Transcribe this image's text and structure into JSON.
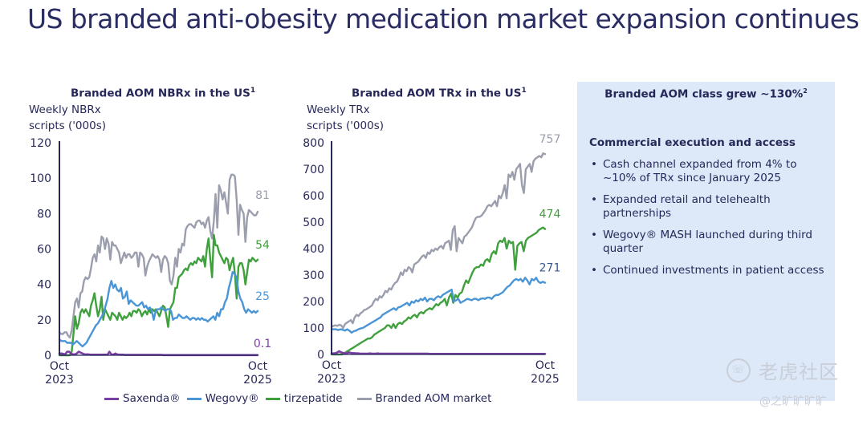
{
  "title": "US branded anti-obesity medication market expansion continues",
  "colors": {
    "saxenda": "#7b3fa3",
    "wegovy": "#4a95d6",
    "tirzepatide": "#3fa03d",
    "market": "#9a9ead",
    "axis": "#27285a",
    "panel_bg": "#dde9f8"
  },
  "legend": [
    {
      "key": "saxenda",
      "label": "Saxenda®"
    },
    {
      "key": "wegovy",
      "label": "Wegovy®"
    },
    {
      "key": "tirzepatide",
      "label": "tirzepatide"
    },
    {
      "key": "market",
      "label": "Branded AOM market"
    }
  ],
  "panel": {
    "title": "Branded AOM class grew ~130%",
    "title_sup": "2",
    "subtitle": "Commercial execution and access",
    "bullet_glyph": "•",
    "bullets": [
      "Cash channel expanded from 4% to ~10% of TRx since January 2025",
      "Expanded retail and telehealth partnerships",
      "Wegovy® MASH launched during third quarter",
      "Continued investments in patient access"
    ]
  },
  "watermark": {
    "text": "老虎社区",
    "handle": "@之旷旷旷旷"
  },
  "chart_data": [
    {
      "type": "line",
      "title": "Branded AOM NBRx in the US",
      "title_sup": "1",
      "ylabel_line1": "Weekly NBRx",
      "ylabel_line2": "scripts ('000s)",
      "xlabel": "",
      "x_range": [
        "Oct 2023",
        "Oct 2025"
      ],
      "x_ticks": [
        {
          "line1": "Oct",
          "line2": "2023",
          "pos": 0
        },
        {
          "line1": "Oct",
          "line2": "2025",
          "pos": 1
        }
      ],
      "ylim": [
        0,
        120
      ],
      "y_ticks": [
        0,
        20,
        40,
        60,
        80,
        100,
        120
      ],
      "grid": false,
      "end_labels": {
        "market": "81",
        "tirzepatide": "54",
        "wegovy": "25",
        "saxenda": "0.1"
      },
      "series": [
        {
          "key": "market",
          "name": "Branded AOM market",
          "values": [
            13,
            12,
            12,
            13,
            13,
            11,
            10,
            14,
            22,
            30,
            32,
            27,
            35,
            36,
            42,
            44,
            43,
            44,
            49,
            55,
            57,
            53,
            62,
            58,
            67,
            66,
            60,
            66,
            63,
            54,
            64,
            62,
            62,
            60,
            58,
            52,
            55,
            58,
            55,
            57,
            57,
            55,
            56,
            58,
            58,
            50,
            58,
            57,
            55,
            45,
            50,
            53,
            55,
            57,
            56,
            55,
            56,
            54,
            47,
            54,
            56,
            55,
            52,
            42,
            40,
            45,
            55,
            50,
            60,
            58,
            63,
            62,
            71,
            73,
            74,
            74,
            73,
            72,
            75,
            76,
            76,
            74,
            75,
            72,
            76,
            78,
            70,
            66,
            76,
            91,
            72,
            96,
            93,
            88,
            92,
            86,
            80,
            99,
            102,
            102,
            101,
            88,
            68,
            85,
            82,
            80,
            64,
            78,
            82,
            81,
            80,
            79,
            79,
            81
          ]
        },
        {
          "key": "tirzepatide",
          "name": "tirzepatide",
          "values": [
            0,
            0,
            0,
            0,
            0,
            0,
            0,
            2,
            12,
            22,
            15,
            18,
            24,
            26,
            24,
            26,
            24,
            22,
            28,
            31,
            35,
            28,
            22,
            26,
            33,
            20,
            26,
            24,
            22,
            20,
            24,
            23,
            22,
            20,
            24,
            22,
            20,
            22,
            21,
            22,
            24,
            22,
            25,
            25,
            24,
            26,
            25,
            22,
            24,
            25,
            23,
            26,
            24,
            26,
            25,
            26,
            24,
            22,
            25,
            28,
            27,
            22,
            16,
            26,
            28,
            30,
            38,
            38,
            44,
            45,
            46,
            48,
            49,
            48,
            51,
            52,
            51,
            53,
            52,
            55,
            54,
            53,
            56,
            50,
            60,
            66,
            54,
            44,
            68,
            62,
            62,
            58,
            56,
            54,
            52,
            55,
            54,
            48,
            52,
            55,
            46,
            32,
            50,
            52,
            52,
            48,
            40,
            47,
            54,
            53,
            55,
            54,
            53,
            54
          ]
        },
        {
          "key": "wegovy",
          "name": "Wegovy®",
          "values": [
            9,
            8,
            8,
            8,
            7,
            7,
            7,
            6,
            7,
            8,
            7,
            6,
            5,
            6,
            7,
            9,
            11,
            13,
            15,
            17,
            18,
            20,
            22,
            24,
            28,
            32,
            38,
            42,
            38,
            40,
            37,
            36,
            38,
            32,
            33,
            36,
            29,
            31,
            30,
            29,
            28,
            28,
            29,
            30,
            27,
            28,
            26,
            27,
            25,
            20,
            25,
            26,
            26,
            27,
            26,
            25,
            26,
            26,
            25,
            20,
            21,
            21,
            23,
            22,
            21,
            21,
            22,
            21,
            20,
            21,
            21,
            20,
            21,
            20,
            21,
            20,
            20,
            19,
            20,
            21,
            22,
            20,
            24,
            22,
            26,
            26,
            30,
            32,
            38,
            42,
            47,
            46,
            44,
            36,
            32,
            30,
            26,
            24,
            26,
            25,
            24,
            25,
            24,
            25
          ]
        },
        {
          "key": "saxenda",
          "name": "Saxenda®",
          "values": [
            1,
            1,
            0.8,
            0.5,
            2,
            2,
            1,
            0.5,
            0.5,
            1,
            2,
            1.5,
            1,
            0.5,
            0.5,
            0.5,
            0.3,
            0.3,
            0.3,
            0.3,
            0.3,
            0.3,
            0.3,
            0.3,
            0.3,
            0.3,
            2,
            0.5,
            0.3,
            1,
            0.5,
            0.3,
            0.3,
            0.3,
            0.2,
            0.2,
            0.2,
            0.2,
            0.2,
            0.2,
            0.2,
            0.2,
            0.2,
            0.2,
            0.2,
            0.2,
            0.2,
            0.2,
            0.2,
            0.2,
            0.2,
            0.2,
            0.2,
            0.2,
            0.1,
            0.1,
            0.1,
            0.1,
            0.1,
            0.1,
            0.1,
            0.1,
            0.1,
            0.1,
            0.1,
            0.1,
            0.1,
            0.1,
            0.1,
            0.1,
            0.1,
            0.1,
            0.1,
            0.1,
            0.1,
            0.1,
            0.1,
            0.1,
            0.1,
            0.1,
            0.1,
            0.1,
            0.1,
            0.1,
            0.1,
            0.1,
            0.1,
            0.1,
            0.1,
            0.1,
            0.1,
            0.1,
            0.1,
            0.1,
            0.1,
            0.1,
            0.1,
            0.1,
            0.1,
            0.1,
            0.1,
            0.1,
            0.1,
            0.1
          ]
        }
      ]
    },
    {
      "type": "line",
      "title": "Branded AOM TRx in the US",
      "title_sup": "1",
      "ylabel_line1": "Weekly TRx",
      "ylabel_line2": "scripts ('000s)",
      "xlabel": "",
      "x_range": [
        "Oct 2023",
        "Oct 2025"
      ],
      "x_ticks": [
        {
          "line1": "Oct",
          "line2": "2023",
          "pos": 0
        },
        {
          "line1": "Oct",
          "line2": "2025",
          "pos": 1
        }
      ],
      "ylim": [
        0,
        800
      ],
      "y_ticks": [
        0,
        100,
        200,
        300,
        400,
        500,
        600,
        700,
        800
      ],
      "grid": false,
      "end_labels": {
        "market": "757",
        "tirzepatide": "474",
        "wegovy": "271",
        "saxenda": ""
      },
      "series": [
        {
          "key": "market",
          "name": "Branded AOM market",
          "values": [
            105,
            108,
            110,
            108,
            112,
            110,
            100,
            115,
            120,
            125,
            130,
            118,
            140,
            150,
            145,
            155,
            160,
            168,
            170,
            175,
            180,
            185,
            200,
            210,
            205,
            220,
            215,
            225,
            240,
            235,
            250,
            245,
            260,
            270,
            275,
            290,
            310,
            300,
            320,
            315,
            330,
            325,
            310,
            340,
            345,
            350,
            360,
            370,
            375,
            365,
            385,
            380,
            395,
            390,
            400,
            395,
            405,
            410,
            400,
            420,
            425,
            430,
            395,
            470,
            485,
            390,
            440,
            430,
            420,
            445,
            450,
            460,
            470,
            480,
            500,
            515,
            520,
            520,
            525,
            535,
            545,
            560,
            565,
            560,
            570,
            580,
            560,
            600,
            590,
            610,
            640,
            590,
            680,
            670,
            690,
            660,
            700,
            710,
            720,
            640,
            610,
            700,
            710,
            720,
            690,
            730,
            740,
            745,
            750,
            745,
            760,
            757
          ]
        },
        {
          "key": "market_unused",
          "name": "",
          "values": []
        },
        {
          "key": "tirzepatide",
          "name": "tirzepatide",
          "values": [
            0,
            0,
            0,
            0,
            0,
            0,
            5,
            10,
            15,
            20,
            25,
            30,
            35,
            40,
            45,
            50,
            55,
            60,
            60,
            65,
            75,
            80,
            85,
            90,
            95,
            100,
            110,
            110,
            100,
            115,
            100,
            115,
            120,
            115,
            125,
            130,
            140,
            135,
            145,
            150,
            140,
            155,
            160,
            155,
            165,
            170,
            175,
            170,
            180,
            190,
            185,
            195,
            200,
            210,
            185,
            215,
            230,
            195,
            225,
            215,
            230,
            235,
            260,
            280,
            270,
            290,
            310,
            325,
            330,
            330,
            340,
            335,
            355,
            360,
            350,
            380,
            390,
            380,
            420,
            430,
            425,
            440,
            400,
            430,
            420,
            425,
            320,
            410,
            420,
            425,
            390,
            430,
            440,
            445,
            450,
            455,
            460,
            470,
            475,
            480,
            474
          ]
        },
        {
          "key": "wegovy",
          "name": "Wegovy®",
          "values": [
            95,
            95,
            95,
            92,
            95,
            93,
            90,
            95,
            90,
            82,
            88,
            90,
            95,
            98,
            100,
            105,
            110,
            115,
            120,
            125,
            130,
            135,
            140,
            150,
            155,
            160,
            165,
            170,
            175,
            168,
            178,
            180,
            185,
            190,
            195,
            185,
            200,
            195,
            205,
            200,
            210,
            205,
            215,
            200,
            210,
            210,
            205,
            215,
            220,
            215,
            225,
            230,
            235,
            240,
            245,
            200,
            205,
            210,
            195,
            200,
            205,
            210,
            208,
            205,
            210,
            210,
            205,
            210,
            212,
            210,
            215,
            215,
            210,
            220,
            225,
            225,
            230,
            235,
            245,
            255,
            260,
            270,
            280,
            285,
            280,
            285,
            275,
            290,
            280,
            265,
            285,
            280,
            290,
            275,
            270,
            275,
            271
          ]
        },
        {
          "key": "saxenda",
          "name": "Saxenda®",
          "values": [
            3,
            4,
            5,
            8,
            12,
            8,
            6,
            4,
            5,
            8,
            6,
            5,
            5,
            4,
            4,
            3,
            3,
            3,
            3,
            3,
            4,
            3,
            3,
            3,
            4,
            3,
            3,
            3,
            3,
            3,
            3,
            3,
            3,
            3,
            3,
            3,
            3,
            3,
            3,
            3,
            3,
            3,
            3,
            3,
            3,
            3,
            3,
            3,
            3,
            3,
            3,
            2,
            2,
            2,
            2,
            2,
            2,
            2,
            2,
            2,
            2,
            2,
            2,
            2,
            2,
            2,
            2,
            2,
            2,
            2,
            2,
            2,
            2,
            2,
            2,
            2,
            2,
            2,
            2,
            2,
            2,
            2,
            2,
            2,
            2,
            2,
            2,
            2,
            2,
            2,
            2,
            2,
            2,
            2,
            2,
            2,
            2,
            2,
            2,
            2,
            2,
            2,
            2,
            2,
            2,
            2,
            2,
            2,
            2,
            2,
            2,
            2
          ]
        }
      ]
    }
  ]
}
